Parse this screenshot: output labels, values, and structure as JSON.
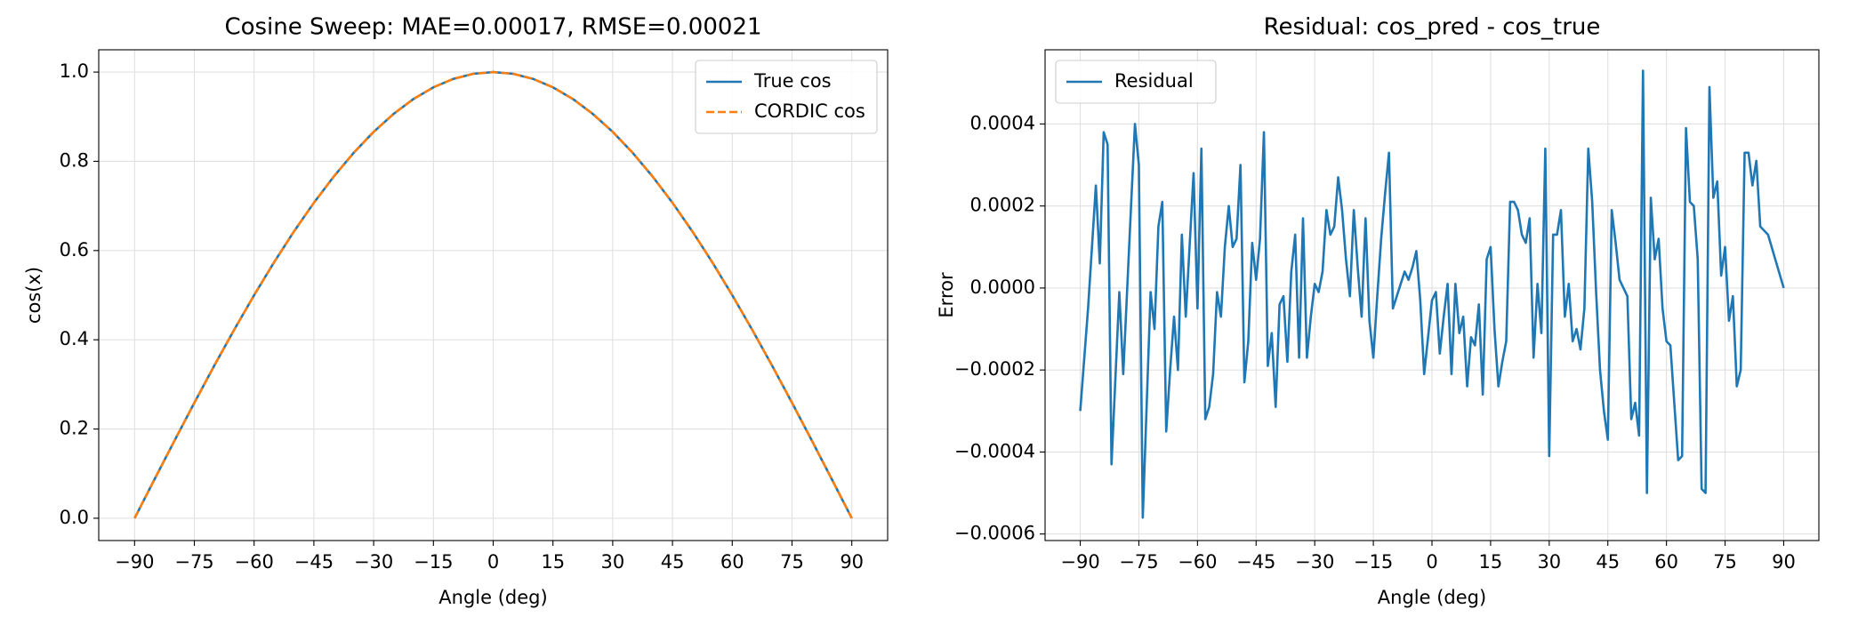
{
  "chart_data": [
    {
      "type": "line",
      "title": "Cosine Sweep: MAE=0.00017, RMSE=0.00021",
      "xlabel": "Angle (deg)",
      "ylabel": "cos(x)",
      "x": [
        -90,
        -85,
        -80,
        -75,
        -70,
        -65,
        -60,
        -55,
        -50,
        -45,
        -40,
        -35,
        -30,
        -25,
        -20,
        -15,
        -10,
        -5,
        0,
        5,
        10,
        15,
        20,
        25,
        30,
        35,
        40,
        45,
        50,
        55,
        60,
        65,
        70,
        75,
        80,
        85,
        90
      ],
      "series": [
        {
          "name": "True cos",
          "color": "#1f77b4",
          "linestyle": "solid",
          "values": [
            0,
            0.0872,
            0.1736,
            0.2588,
            0.342,
            0.4226,
            0.5,
            0.5736,
            0.6428,
            0.7071,
            0.766,
            0.8192,
            0.866,
            0.9063,
            0.9397,
            0.9659,
            0.9848,
            0.9962,
            1,
            0.9962,
            0.9848,
            0.9659,
            0.9397,
            0.9063,
            0.866,
            0.8192,
            0.766,
            0.7071,
            0.6428,
            0.5736,
            0.5,
            0.4226,
            0.342,
            0.2588,
            0.1736,
            0.0872,
            0
          ]
        },
        {
          "name": "CORDIC cos",
          "color": "#ff7f0e",
          "linestyle": "dashed",
          "values": [
            0,
            0.0872,
            0.1736,
            0.2588,
            0.342,
            0.4226,
            0.5,
            0.5736,
            0.6428,
            0.7071,
            0.766,
            0.8192,
            0.866,
            0.9063,
            0.9397,
            0.9659,
            0.9848,
            0.9962,
            1,
            0.9962,
            0.9848,
            0.9659,
            0.9397,
            0.9063,
            0.866,
            0.8192,
            0.766,
            0.7071,
            0.6428,
            0.5736,
            0.5,
            0.4226,
            0.342,
            0.2588,
            0.1736,
            0.0872,
            0
          ]
        }
      ],
      "xlim": [
        -99,
        99
      ],
      "ylim": [
        -0.05,
        1.05
      ],
      "xticks": [
        {
          "value": -90,
          "label": "−90"
        },
        {
          "value": -75,
          "label": "−75"
        },
        {
          "value": -60,
          "label": "−60"
        },
        {
          "value": -45,
          "label": "−45"
        },
        {
          "value": -30,
          "label": "−30"
        },
        {
          "value": -15,
          "label": "−15"
        },
        0,
        15,
        30,
        45,
        60,
        75,
        90
      ],
      "yticks": [
        {
          "value": 0,
          "label": "0.0"
        },
        {
          "value": 0.2,
          "label": "0.2"
        },
        {
          "value": 0.4,
          "label": "0.4"
        },
        {
          "value": 0.6,
          "label": "0.6"
        },
        {
          "value": 0.8,
          "label": "0.8"
        },
        {
          "value": 1,
          "label": "1.0"
        }
      ],
      "grid": true,
      "legend": "upper right"
    },
    {
      "type": "line",
      "title": "Residual: cos_pred - cos_true",
      "xlabel": "Angle (deg)",
      "ylabel": "Error",
      "x": [
        -90,
        -88,
        -86,
        -85,
        -84,
        -83,
        -82,
        -80,
        -79,
        -77,
        -76,
        -75,
        -74,
        -72,
        -71,
        -70,
        -69,
        -68,
        -67,
        -66,
        -65,
        -64,
        -63,
        -61,
        -60,
        -59,
        -58,
        -57,
        -56,
        -55,
        -54,
        -53,
        -52,
        -51,
        -50,
        -49,
        -48,
        -47,
        -46,
        -45,
        -44,
        -43,
        -42,
        -41,
        -40,
        -39,
        -38,
        -37,
        -36,
        -35,
        -34,
        -33,
        -32,
        -31,
        -30,
        -29,
        -28,
        -27,
        -26,
        -25,
        -24,
        -23,
        -22,
        -21,
        -20,
        -19,
        -18,
        -17,
        -16,
        -15,
        -14,
        -13,
        -12,
        -11,
        -10,
        -9,
        -8,
        -7,
        -6,
        -5,
        -4,
        -3,
        -2,
        -1,
        0,
        1,
        2,
        3,
        4,
        5,
        6,
        7,
        8,
        9,
        10,
        11,
        12,
        13,
        14,
        15,
        16,
        17,
        18,
        19,
        20,
        21,
        22,
        23,
        24,
        25,
        26,
        27,
        28,
        29,
        30,
        31,
        32,
        33,
        34,
        35,
        36,
        37,
        38,
        39,
        40,
        41,
        42,
        43,
        44,
        45,
        46,
        47,
        48,
        49,
        50,
        51,
        52,
        53,
        54,
        55,
        56,
        57,
        58,
        59,
        60,
        61,
        62,
        63,
        64,
        65,
        66,
        67,
        68,
        69,
        70,
        71,
        72,
        73,
        74,
        75,
        76,
        77,
        78,
        79,
        80,
        81,
        82,
        83,
        84,
        85,
        86,
        90
      ],
      "series": [
        {
          "name": "Residual",
          "color": "#1f77b4",
          "linestyle": "solid",
          "values": [
            -0.0003,
            -5e-05,
            0.00025,
            6e-05,
            0.00038,
            0.00035,
            -0.00043,
            -1e-05,
            -0.00021,
            0.0002,
            0.0004,
            0.0003,
            -0.00056,
            -1e-05,
            -0.0001,
            0.00015,
            0.00021,
            -0.00035,
            -0.0002,
            -7e-05,
            -0.0002,
            0.00013,
            -7e-05,
            0.00028,
            -5e-05,
            0.00034,
            -0.00032,
            -0.00029,
            -0.00021,
            -1e-05,
            -7e-05,
            0.0001,
            0.0002,
            0.0001,
            0.00012,
            0.0003,
            -0.00023,
            -0.00013,
            0.00011,
            2e-05,
            0.00012,
            0.00038,
            -0.00019,
            -0.00011,
            -0.00029,
            -4e-05,
            -2e-05,
            -0.00018,
            4e-05,
            0.00013,
            -0.00017,
            0.00017,
            -0.00017,
            -7e-05,
            1e-05,
            -1e-05,
            4e-05,
            0.00019,
            0.00013,
            0.00015,
            0.00027,
            0.00019,
            7e-05,
            -2e-05,
            0.00019,
            5e-05,
            -7e-05,
            0.00017,
            -8e-05,
            -0.00017,
            -2e-05,
            0.00012,
            0.00023,
            0.00033,
            -5e-05,
            -2e-05,
            1e-05,
            4e-05,
            2e-05,
            5e-05,
            9e-05,
            -3e-05,
            -0.00021,
            -0.00012,
            -3e-05,
            -1e-05,
            -0.00016,
            -7e-05,
            1e-05,
            -0.00021,
            1e-05,
            -0.00011,
            -7e-05,
            -0.00024,
            -0.00012,
            -0.00014,
            -4e-05,
            -0.00026,
            7e-05,
            0.0001,
            -0.0001,
            -0.00024,
            -0.00018,
            -0.00013,
            0.00021,
            0.00021,
            0.00019,
            0.00013,
            0.00011,
            0.00017,
            -0.00017,
            1e-05,
            -0.00011,
            0.00034,
            -0.00041,
            0.00013,
            0.00013,
            0.00019,
            -7e-05,
            1e-05,
            -0.00013,
            -0.0001,
            -0.00015,
            -5e-05,
            0.00034,
            0.00021,
            -1e-05,
            -0.0002,
            -0.0003,
            -0.00037,
            0.00019,
            0.00011,
            2e-05,
            0,
            -2e-05,
            -0.00032,
            -0.00028,
            -0.00036,
            0.00053,
            -0.0005,
            0.00022,
            7e-05,
            0.00012,
            -5e-05,
            -0.00013,
            -0.00014,
            -0.00028,
            -0.00042,
            -0.00041,
            0.00039,
            0.00021,
            0.0002,
            7e-05,
            -0.00049,
            -0.0005,
            0.00049,
            0.00022,
            0.00026,
            3e-05,
            0.0001,
            -8e-05,
            -2e-05,
            -0.00024,
            -0.0002,
            0.00033,
            0.00033,
            0.00025,
            0.00031,
            0.00015,
            0.00014,
            0.00013,
            0
          ]
        }
      ],
      "xlim": [
        -99,
        99
      ],
      "ylim": [
        -0.000616,
        0.000581
      ],
      "xticks": [
        {
          "value": -90,
          "label": "−90"
        },
        {
          "value": -75,
          "label": "−75"
        },
        {
          "value": -60,
          "label": "−60"
        },
        {
          "value": -45,
          "label": "−45"
        },
        {
          "value": -30,
          "label": "−30"
        },
        {
          "value": -15,
          "label": "−15"
        },
        0,
        15,
        30,
        45,
        60,
        75,
        90
      ],
      "yticks": [
        {
          "value": -0.0006,
          "label": "−0.0006"
        },
        {
          "value": -0.0004,
          "label": "−0.0004"
        },
        {
          "value": -0.0002,
          "label": "−0.0002"
        },
        {
          "value": 0,
          "label": "0.0000"
        },
        {
          "value": 0.0002,
          "label": "0.0002"
        },
        {
          "value": 0.0004,
          "label": "0.0004"
        }
      ],
      "grid": true,
      "legend": "upper left"
    }
  ]
}
